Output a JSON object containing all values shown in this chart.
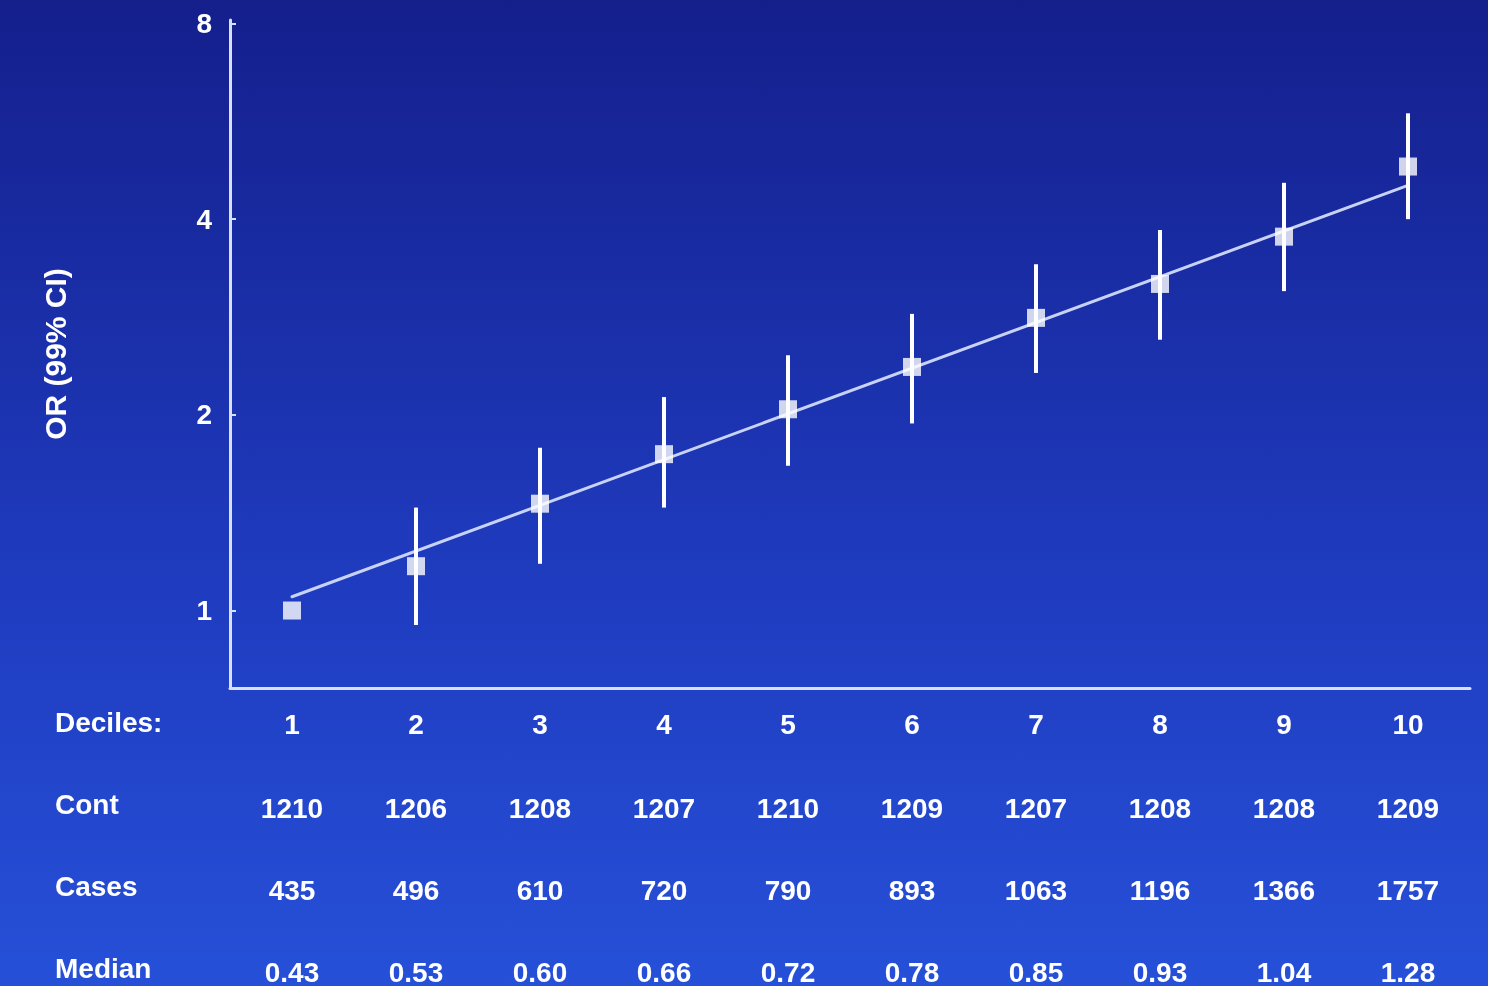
{
  "chart_data": {
    "type": "scatter",
    "ylabel": "OR (99% CI)",
    "xlabel": "Deciles:",
    "categories": [
      "1",
      "2",
      "3",
      "4",
      "5",
      "6",
      "7",
      "8",
      "9",
      "10"
    ],
    "log": "y",
    "ylim": [
      0.76,
      8.1
    ],
    "yticks": [
      1,
      2,
      4,
      8
    ],
    "grid": false,
    "marker": "square",
    "series": [
      {
        "color": "#ffffff",
        "values": [
          1.0,
          1.17,
          1.46,
          1.74,
          2.04,
          2.37,
          2.82,
          3.18,
          3.76,
          4.82
        ],
        "errors": [
          null,
          [
            0.95,
            1.44
          ],
          [
            1.18,
            1.78
          ],
          [
            1.44,
            2.13
          ],
          [
            1.67,
            2.47
          ],
          [
            1.94,
            2.86
          ],
          [
            2.32,
            3.41
          ],
          [
            2.61,
            3.85
          ],
          [
            3.1,
            4.55
          ],
          [
            4.0,
            5.82
          ]
        ]
      },
      {
        "type": "line",
        "color": "#c8d2f5",
        "line_style": "solid",
        "marker": "none",
        "values": [
          1.05,
          null,
          null,
          null,
          null,
          null,
          null,
          null,
          null,
          4.51
        ]
      }
    ],
    "annotations": [
      "Cont",
      "1210",
      "1206",
      "1208",
      "1207",
      "1210",
      "1209",
      "1207",
      "1208",
      "1208",
      "1209",
      "Cases",
      "435",
      "496",
      "610",
      "720",
      "790",
      "893",
      "1063",
      "1196",
      "1366",
      "1757",
      "Median",
      "0.43",
      "0.53",
      "0.60",
      "0.66",
      "0.72",
      "0.78",
      "0.85",
      "0.93",
      "1.04",
      "1.28"
    ]
  }
}
